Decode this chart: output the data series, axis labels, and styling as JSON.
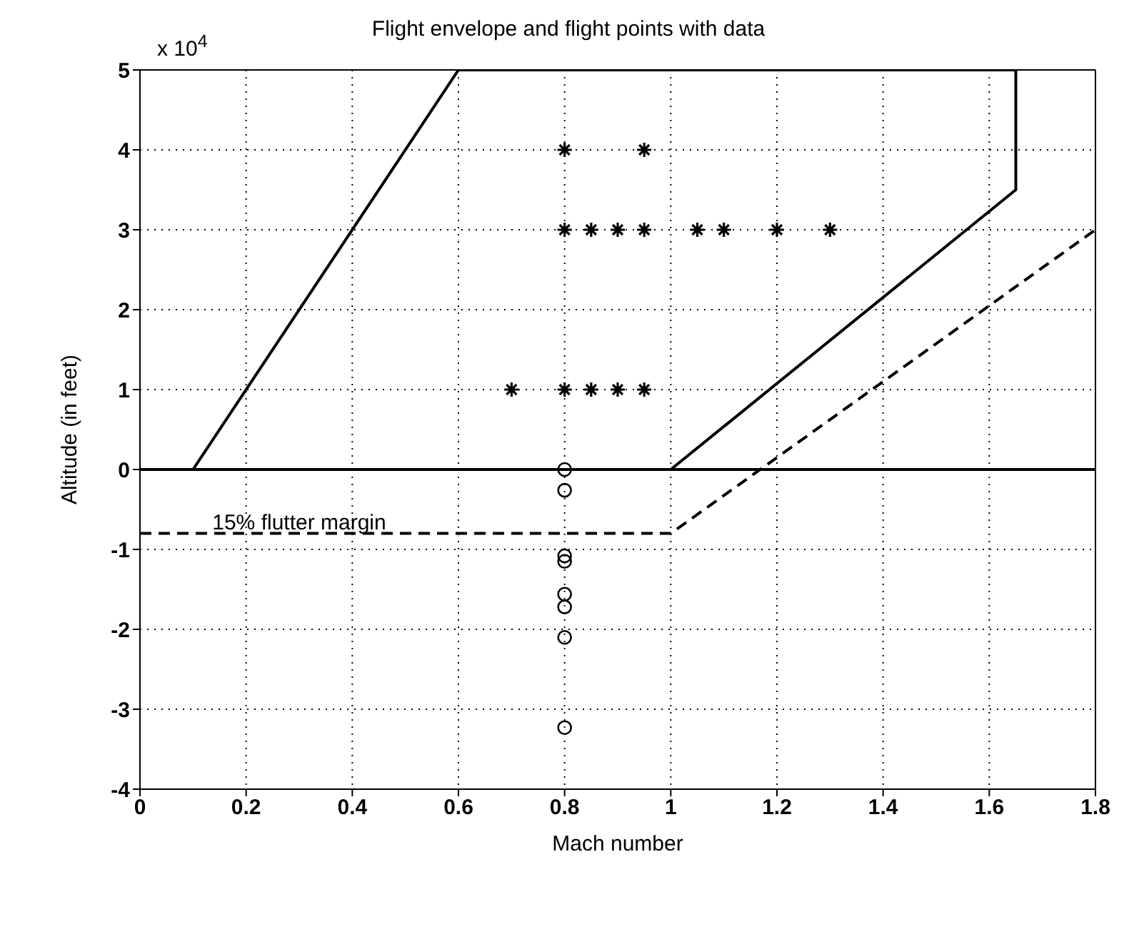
{
  "chart_data": {
    "type": "scatter",
    "title": "Flight envelope and flight points with data",
    "xlabel": "Mach number",
    "ylabel": "Altitude (in feet)",
    "xlim": [
      0,
      1.8
    ],
    "xticks": [
      0,
      0.2,
      0.4,
      0.6,
      0.8,
      1,
      1.2,
      1.4,
      1.6,
      1.8
    ],
    "ylim": [
      -4,
      5
    ],
    "yticks": [
      -4,
      -3,
      -2,
      -1,
      0,
      1,
      2,
      3,
      4,
      5
    ],
    "grid": true,
    "series": [
      {
        "type": "line",
        "color": "#000000",
        "line_style": "solid",
        "marker": "none",
        "x": [
          0.1,
          0.6,
          1.65,
          1.65,
          1.0
        ],
        "values": [
          0,
          5,
          5,
          3.5,
          0
        ]
      },
      {
        "type": "line",
        "color": "#000000",
        "line_style": "solid",
        "marker": "none",
        "x": [
          0,
          1.8
        ],
        "values": [
          0,
          0
        ]
      },
      {
        "type": "line",
        "color": "#000000",
        "line_style": "dashed",
        "marker": "none",
        "x": [
          0,
          1.0,
          1.8
        ],
        "values": [
          -0.8,
          -0.8,
          3
        ]
      },
      {
        "color": "#000000",
        "marker": "cross",
        "x": [
          0.8,
          0.95,
          0.8,
          0.85,
          0.9,
          0.95,
          1.05,
          1.1,
          1.2,
          1.3,
          0.7,
          0.8,
          0.85,
          0.9,
          0.95
        ],
        "values": [
          4,
          4,
          3,
          3,
          3,
          3,
          3,
          3,
          3,
          3,
          1,
          1,
          1,
          1,
          1
        ]
      },
      {
        "color": "#000000",
        "marker": "circle",
        "x": [
          0.8,
          0.8,
          0.8,
          0.8,
          0.8,
          0.8,
          0.8,
          0.8
        ],
        "values": [
          0,
          -0.26,
          -1.08,
          -1.15,
          -1.56,
          -1.72,
          -2.1,
          -3.23
        ]
      }
    ],
    "annotations": [
      "x 10$^{4}$",
      {
        "text": "15% flutter margin",
        "x": 0.3,
        "y": -0.8
      }
    ]
  }
}
